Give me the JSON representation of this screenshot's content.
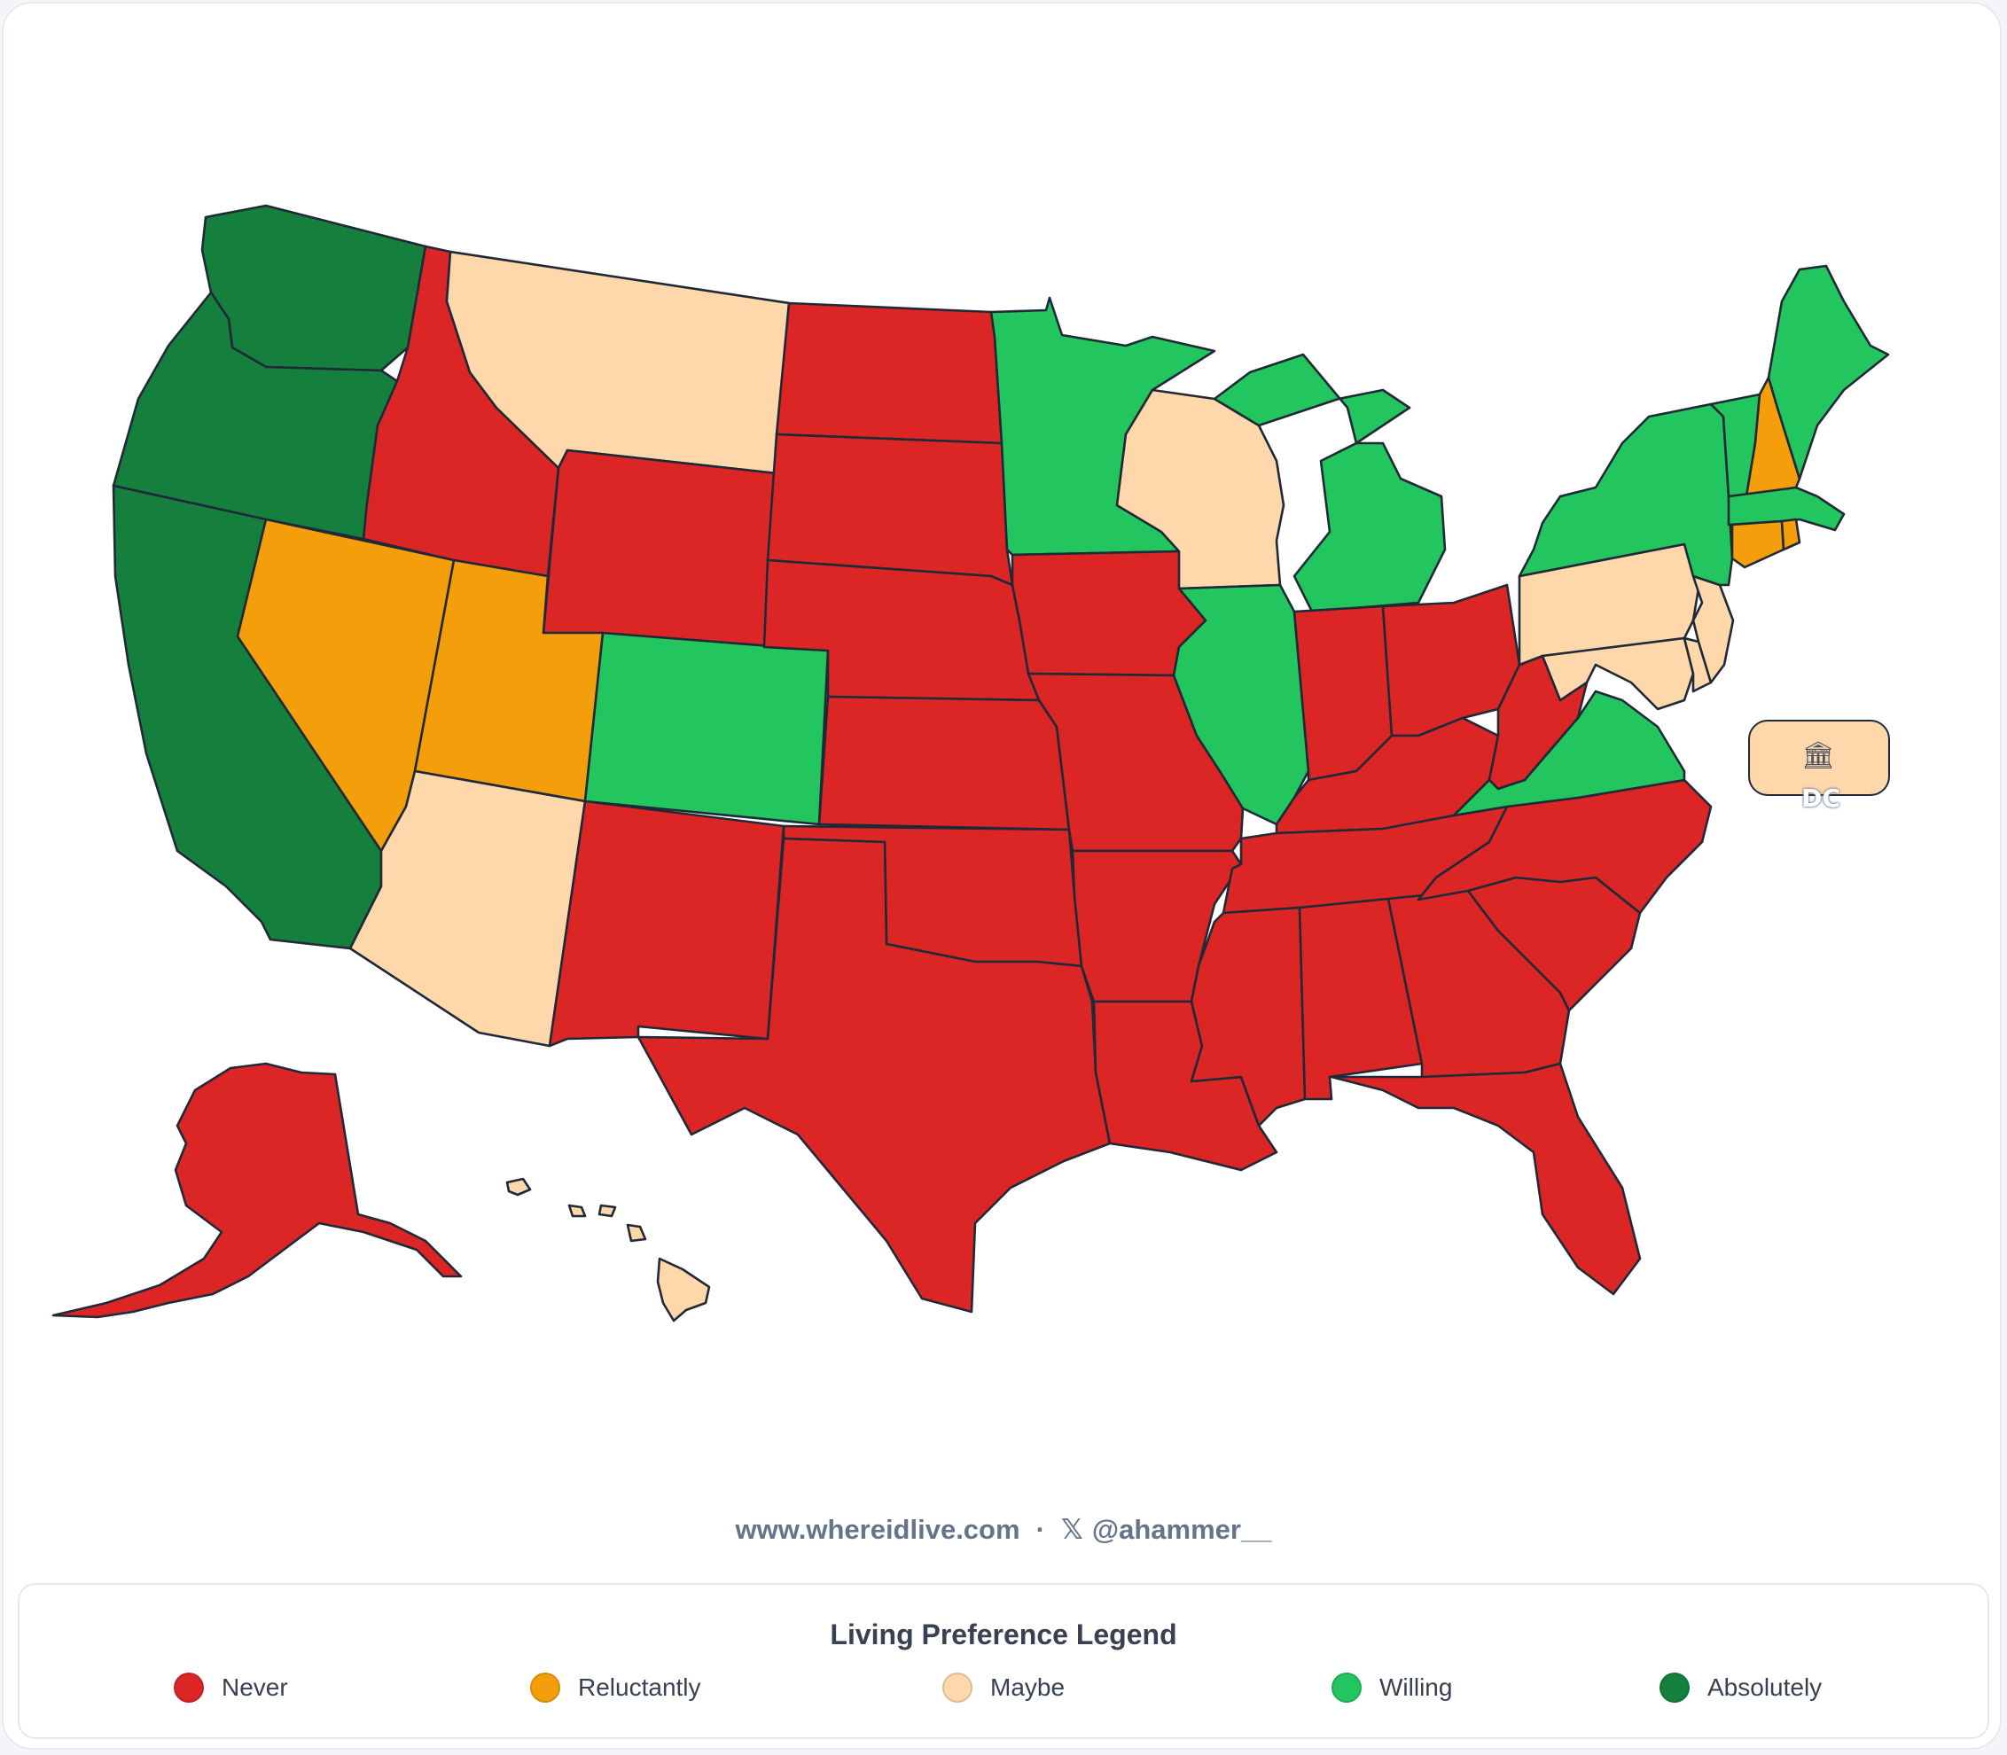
{
  "map": {
    "categories": {
      "never": {
        "label": "Never",
        "color": "#dc2626"
      },
      "reluctantly": {
        "label": "Reluctantly",
        "color": "#f59e0b"
      },
      "maybe": {
        "label": "Maybe",
        "color": "#fed7aa"
      },
      "willing": {
        "label": "Willing",
        "color": "#22c55e"
      },
      "absolutely": {
        "label": "Absolutely",
        "color": "#15803d"
      }
    },
    "states": {
      "WA": "absolutely",
      "OR": "absolutely",
      "CA": "absolutely",
      "NV": "reluctantly",
      "UT": "reluctantly",
      "NH": "reluctantly",
      "CT": "reluctantly",
      "RI": "reluctantly",
      "MT": "maybe",
      "AZ": "maybe",
      "WI": "maybe",
      "PA": "maybe",
      "NJ": "maybe",
      "DE": "maybe",
      "MD": "maybe",
      "HI": "maybe",
      "DC": "maybe",
      "CO": "willing",
      "MN": "willing",
      "IL": "willing",
      "MI": "willing",
      "NY": "willing",
      "VA": "willing",
      "VT": "willing",
      "ME": "willing",
      "MA": "willing",
      "ID": "never",
      "WY": "never",
      "ND": "never",
      "SD": "never",
      "NE": "never",
      "KS": "never",
      "OK": "never",
      "TX": "never",
      "NM": "never",
      "IA": "never",
      "MO": "never",
      "AR": "never",
      "LA": "never",
      "MS": "never",
      "AL": "never",
      "GA": "never",
      "FL": "never",
      "SC": "never",
      "NC": "never",
      "TN": "never",
      "KY": "never",
      "IN": "never",
      "OH": "never",
      "WV": "never",
      "AK": "never"
    },
    "dc_label": "DC",
    "dc_icon": "🏛"
  },
  "footer": {
    "website": "www.whereidlive.com",
    "separator": "·",
    "x_icon": "𝕏",
    "handle": "@ahammer__"
  },
  "legend": {
    "title": "Living Preference Legend",
    "items": [
      {
        "label": "Never",
        "color": "#dc2626"
      },
      {
        "label": "Reluctantly",
        "color": "#f59e0b"
      },
      {
        "label": "Maybe",
        "color": "#fed7aa"
      },
      {
        "label": "Willing",
        "color": "#22c55e"
      },
      {
        "label": "Absolutely",
        "color": "#15803d"
      }
    ]
  }
}
